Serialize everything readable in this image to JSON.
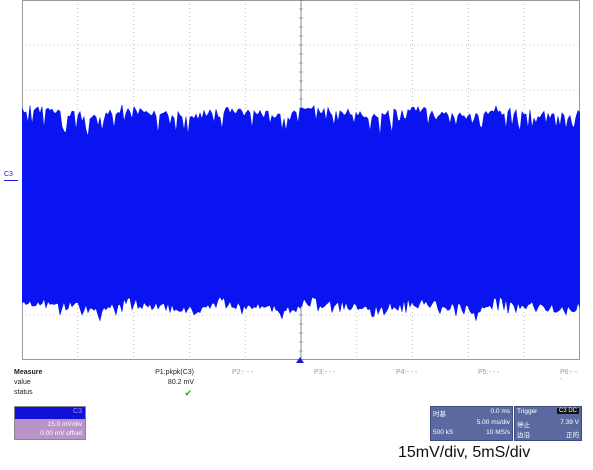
{
  "scope": {
    "channel_label": "C3",
    "trace_color": "#0a14f0",
    "grid_color": "#9a9a9a",
    "grid": {
      "horizontal_divisions": 10,
      "vertical_divisions": 8
    }
  },
  "measure": {
    "header": "Measure",
    "rows": [
      "value",
      "status"
    ],
    "p1_label": "P1:pkpk(C3)",
    "p1_value": "80.2 mV",
    "p1_status": "✔",
    "p2": "P2:- - -",
    "p3": "P3:- - -",
    "p4": "P4:- - -",
    "p5": "P5:- - -",
    "p6": "P6:- - -"
  },
  "channel_descriptor": {
    "name": "C3",
    "scale": "15.0 mV/div",
    "offset": "0.00 mV offset",
    "colors": {
      "header": "#1010d8",
      "body": "#b894c8"
    }
  },
  "timebase": {
    "label": "时基",
    "delay": "0.0 ms",
    "scale": "5.00 ms/div",
    "samples": "500 kS",
    "rate": "10 MS/s"
  },
  "trigger": {
    "title": "Trigger",
    "badge": "C3 DC",
    "mode": "停止",
    "level": "7.39 V",
    "type": "边沿",
    "slope": "正的"
  },
  "caption": "15mV/div, 5mS/div"
}
